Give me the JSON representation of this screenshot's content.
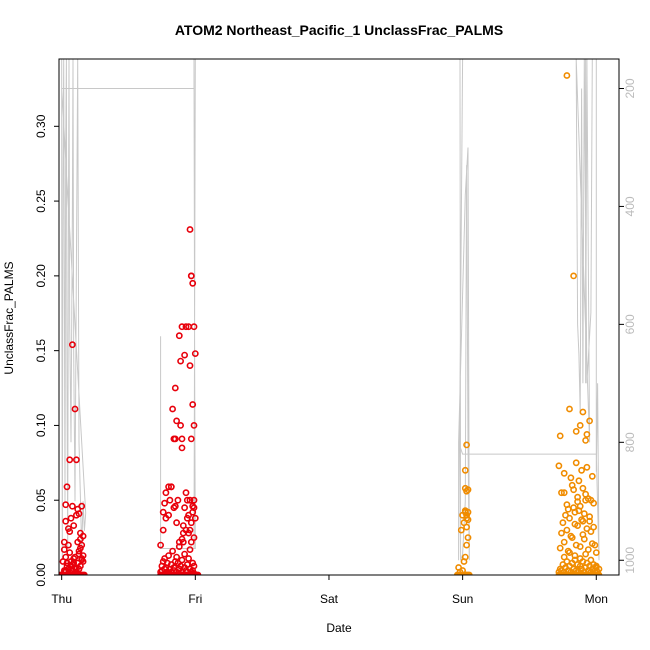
{
  "chart_data": {
    "type": "scatter",
    "title": "ATOM2 Northeast_Pacific_1 UnclassFrac_PALMS",
    "xlabel": "Date",
    "ylabel": "UnclassFrac_PALMS",
    "x_ticks": [
      "Thu",
      "Fri",
      "Sat",
      "Sun",
      "Mon"
    ],
    "y_ticks": [
      "0.00",
      "0.05",
      "0.10",
      "0.15",
      "0.20",
      "0.25",
      "0.30"
    ],
    "y_tick_values": [
      0,
      0.05,
      0.1,
      0.15,
      0.2,
      0.25,
      0.3
    ],
    "ylim": [
      0,
      0.345
    ],
    "xlim_days": [
      -0.02,
      4.17
    ],
    "right_axis": {
      "ticks": [
        "200",
        "400",
        "600",
        "800",
        "1000"
      ],
      "tick_values": [
        200,
        400,
        600,
        800,
        1000
      ],
      "ylim": [
        1025,
        150
      ],
      "inverted": true,
      "color": "#bbbbbb"
    },
    "grid": false,
    "point_colors": {
      "red": "#e8000b",
      "orange": "#f08c00"
    },
    "pressure_line_color": "#c8c8c8",
    "series": [
      {
        "color": "red",
        "x": [
          -0.01,
          0.0,
          0.01,
          0.02,
          0.03,
          0.04,
          0.05,
          0.06,
          0.07,
          0.08,
          0.09,
          0.1,
          0.11,
          0.12,
          0.13,
          0.14,
          0.15,
          0.16,
          0.17,
          0.01,
          0.02,
          0.02,
          0.03,
          0.03,
          0.04,
          0.04,
          0.05,
          0.05,
          0.06,
          0.06,
          0.07,
          0.08,
          0.08,
          0.09,
          0.09,
          0.1,
          0.11,
          0.12,
          0.13,
          0.13,
          0.14,
          0.15,
          0.15,
          0.16,
          0.14,
          0.16,
          0.05,
          0.11,
          0.08,
          0.1,
          0.12,
          0.14,
          0.15,
          0.16,
          0.03,
          0.07,
          0.09,
          0.13,
          0.06,
          0.02,
          0.05,
          0.09,
          0.11,
          0.08,
          0.03,
          0.03,
          0.12,
          0.04,
          0.15,
          0.07,
          0.13,
          0.11,
          0.14,
          0.06,
          0.1,
          0.08,
          0.74,
          0.75,
          0.76,
          0.77,
          0.78,
          0.79,
          0.8,
          0.81,
          0.82,
          0.83,
          0.84,
          0.85,
          0.86,
          0.87,
          0.88,
          0.89,
          0.9,
          0.91,
          0.92,
          0.93,
          0.94,
          0.95,
          0.96,
          0.97,
          0.98,
          0.99,
          1.0,
          1.01,
          1.02,
          0.74,
          0.75,
          0.75,
          0.76,
          0.77,
          0.77,
          0.78,
          0.79,
          0.79,
          0.8,
          0.8,
          0.81,
          0.82,
          0.82,
          0.83,
          0.84,
          0.84,
          0.85,
          0.86,
          0.86,
          0.87,
          0.88,
          0.88,
          0.89,
          0.9,
          0.9,
          0.91,
          0.92,
          0.92,
          0.93,
          0.94,
          0.94,
          0.95,
          0.96,
          0.96,
          0.97,
          0.98,
          0.98,
          0.99,
          0.99,
          0.74,
          0.76,
          0.77,
          0.78,
          0.8,
          0.81,
          0.82,
          0.84,
          0.85,
          0.86,
          0.87,
          0.88,
          0.9,
          0.91,
          0.92,
          0.93,
          0.94,
          0.95,
          0.96,
          0.97,
          0.98,
          0.99,
          0.76,
          0.78,
          0.82,
          0.8,
          0.85,
          0.86,
          0.84,
          0.89,
          0.9,
          0.94,
          0.95,
          0.93,
          0.91,
          0.97,
          0.96,
          0.99,
          0.98,
          0.99,
          1.0,
          0.97,
          0.83,
          0.85,
          0.89,
          0.9,
          0.95,
          0.99,
          0.97,
          0.98,
          0.96,
          0.92,
          0.88
        ],
        "y": [
          0,
          0,
          0,
          0,
          0,
          0,
          0,
          0,
          0,
          0,
          0,
          0,
          0,
          0,
          0,
          0,
          0,
          0,
          0,
          0.009,
          0.003,
          0.017,
          0.002,
          0.012,
          0.008,
          0.006,
          0.001,
          0.004,
          0.015,
          0.002,
          0.009,
          0.003,
          0.007,
          0.011,
          0.001,
          0.005,
          0.002,
          0.008,
          0.004,
          0.016,
          0.006,
          0.01,
          0.02,
          0.013,
          0.024,
          0.009,
          0.02,
          0.004,
          0.003,
          0.012,
          0.022,
          0.018,
          0.011,
          0.026,
          0.003,
          0.006,
          0.008,
          0.014,
          0.029,
          0.022,
          0.031,
          0.033,
          0.04,
          0.046,
          0.036,
          0.047,
          0.044,
          0.059,
          0.046,
          0.038,
          0.041,
          0.077,
          0.028,
          0.077,
          0.111,
          0.154,
          0,
          0,
          0,
          0,
          0,
          0,
          0,
          0,
          0,
          0,
          0,
          0,
          0,
          0,
          0,
          0,
          0,
          0,
          0,
          0,
          0,
          0,
          0,
          0,
          0,
          0,
          0,
          0,
          0,
          0.002,
          0.006,
          0.003,
          0.009,
          0.004,
          0.011,
          0.005,
          0.002,
          0.008,
          0.001,
          0.013,
          0.004,
          0.007,
          0.002,
          0.016,
          0.005,
          0.003,
          0.009,
          0.012,
          0.002,
          0.008,
          0.004,
          0.019,
          0.006,
          0.01,
          0.002,
          0.022,
          0.005,
          0.014,
          0.003,
          0.007,
          0.002,
          0.011,
          0.004,
          0.017,
          0.002,
          0.008,
          0.003,
          0.006,
          0.001,
          0.02,
          0.03,
          0.048,
          0.055,
          0.04,
          0.05,
          0.059,
          0.045,
          0.046,
          0.035,
          0.05,
          0.022,
          0.024,
          0.033,
          0.045,
          0.03,
          0.038,
          0.028,
          0.05,
          0.022,
          0.046,
          0.025,
          0.042,
          0.038,
          0.059,
          0.059,
          0.091,
          0.103,
          0.091,
          0.1,
          0.091,
          0.05,
          0.04,
          0.055,
          0.028,
          0.035,
          0.03,
          0.05,
          0.042,
          0.045,
          0.038,
          0.091,
          0.111,
          0.125,
          0.143,
          0.166,
          0.166,
          0.166,
          0.2,
          0.195,
          0.231,
          0.147,
          0.16
        ],
        "note_last_points": [
          [
            0.93,
            0.166
          ],
          [
            0.9,
            0.085
          ],
          [
            0.96,
            0.14
          ],
          [
            0.98,
            0.114
          ],
          [
            0.99,
            0.1
          ],
          [
            1.0,
            0.148
          ],
          [
            0.97,
            0.2
          ]
        ]
      },
      {
        "color": "orange",
        "x": [
          2.96,
          2.97,
          2.98,
          2.99,
          3.0,
          3.01,
          3.02,
          3.03,
          3.04,
          3.05,
          2.97,
          2.98,
          3.0,
          3.01,
          3.02,
          3.03,
          3.04,
          2.99,
          3.0,
          3.02,
          3.03,
          3.04,
          3.01,
          3.03,
          3.02,
          3.04,
          3.02,
          3.03,
          3.03,
          3.02,
          3.03,
          3.04,
          3.72,
          3.73,
          3.74,
          3.75,
          3.76,
          3.77,
          3.78,
          3.79,
          3.8,
          3.81,
          3.82,
          3.83,
          3.84,
          3.85,
          3.86,
          3.87,
          3.88,
          3.89,
          3.9,
          3.91,
          3.92,
          3.93,
          3.94,
          3.95,
          3.96,
          3.97,
          3.98,
          3.99,
          4.0,
          4.01,
          4.02,
          3.72,
          3.73,
          3.74,
          3.75,
          3.76,
          3.77,
          3.78,
          3.79,
          3.8,
          3.81,
          3.82,
          3.83,
          3.84,
          3.85,
          3.86,
          3.87,
          3.88,
          3.89,
          3.9,
          3.91,
          3.92,
          3.93,
          3.94,
          3.95,
          3.96,
          3.97,
          3.98,
          3.99,
          4.0,
          4.01,
          4.02,
          3.76,
          3.8,
          3.84,
          3.88,
          3.92,
          3.96,
          4.0,
          3.73,
          3.76,
          3.79,
          3.82,
          3.85,
          3.88,
          3.91,
          3.94,
          3.97,
          4.0,
          3.74,
          3.78,
          3.81,
          3.86,
          3.9,
          3.93,
          3.96,
          3.99,
          3.75,
          3.8,
          3.84,
          3.89,
          3.95,
          3.98,
          3.77,
          3.83,
          3.87,
          3.92,
          3.74,
          3.78,
          3.82,
          3.86,
          3.9,
          3.94,
          3.98,
          3.76,
          3.81,
          3.85,
          3.89,
          3.93,
          3.97,
          3.79,
          3.84,
          3.88,
          3.92,
          3.96,
          3.72,
          3.87,
          3.83,
          3.91,
          3.95,
          3.85,
          3.88,
          3.9,
          3.95,
          3.93,
          3.92,
          3.73,
          3.8,
          3.76,
          3.83,
          3.86,
          3.9
        ],
        "y": [
          0,
          0,
          0,
          0,
          0,
          0,
          0,
          0,
          0,
          0,
          0.005,
          0.002,
          0.003,
          0.009,
          0.012,
          0.02,
          0.025,
          0.03,
          0.04,
          0.042,
          0.038,
          0.042,
          0.035,
          0.032,
          0.058,
          0.057,
          0.07,
          0.087,
          0.056,
          0.043,
          0.04,
          0.037,
          0,
          0,
          0,
          0,
          0,
          0,
          0,
          0,
          0,
          0,
          0,
          0,
          0,
          0,
          0,
          0,
          0,
          0,
          0,
          0,
          0,
          0,
          0,
          0,
          0,
          0,
          0,
          0,
          0,
          0,
          0,
          0.002,
          0.004,
          0.003,
          0.007,
          0.002,
          0.005,
          0.009,
          0.003,
          0.006,
          0.002,
          0.008,
          0.004,
          0.01,
          0.003,
          0.007,
          0.002,
          0.006,
          0.004,
          0.009,
          0.002,
          0.005,
          0.008,
          0.003,
          0.006,
          0.002,
          0.004,
          0.007,
          0.003,
          0.005,
          0.002,
          0.004,
          0.012,
          0.015,
          0.013,
          0.011,
          0.014,
          0.01,
          0.006,
          0.018,
          0.022,
          0.016,
          0.025,
          0.02,
          0.019,
          0.024,
          0.017,
          0.021,
          0.015,
          0.028,
          0.03,
          0.026,
          0.033,
          0.027,
          0.031,
          0.029,
          0.02,
          0.035,
          0.038,
          0.034,
          0.037,
          0.036,
          0.032,
          0.04,
          0.045,
          0.043,
          0.05,
          0.055,
          0.047,
          0.06,
          0.052,
          0.058,
          0.051,
          0.048,
          0.068,
          0.065,
          0.075,
          0.07,
          0.072,
          0.066,
          0.044,
          0.042,
          0.046,
          0.054,
          0.05,
          0.073,
          0.063,
          0.057,
          0.041,
          0.039,
          0.096,
          0.1,
          0.109,
          0.103,
          0.094,
          0.09,
          0.093,
          0.111,
          0.055,
          0.2,
          0.049,
          0.036
        ],
        "note_last_points": [
          [
            3.78,
            0.334
          ]
        ]
      }
    ]
  }
}
